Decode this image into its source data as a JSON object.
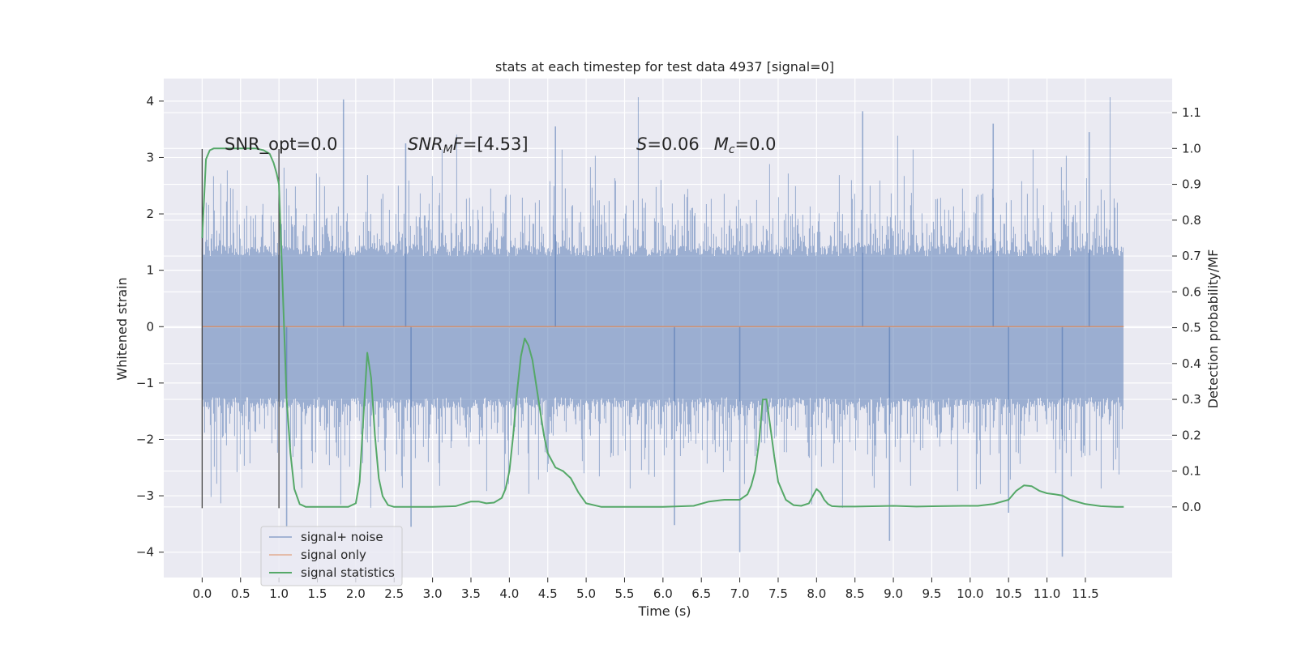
{
  "chart_data": {
    "type": "line",
    "title": "stats at each timestep for test data 4937 [signal=0]",
    "xlabel": "Time (s)",
    "ylabel": "Whitened strain",
    "y2label": "Detection probability/MF",
    "xlim": [
      -0.5,
      12.63
    ],
    "ylim": [
      -4.45,
      4.4
    ],
    "y2lim": [
      -0.197,
      1.195
    ],
    "x_ticks": [
      0.0,
      0.5,
      1.0,
      1.5,
      2.0,
      2.5,
      3.0,
      3.5,
      4.0,
      4.5,
      5.0,
      5.5,
      6.0,
      6.5,
      7.0,
      7.5,
      8.0,
      8.5,
      9.0,
      9.5,
      10.0,
      10.5,
      11.0,
      11.5
    ],
    "x_tick_labels": [
      "0.0",
      "0.5",
      "1.0",
      "1.5",
      "2.0",
      "2.5",
      "3.0",
      "3.5",
      "4.0",
      "4.5",
      "5.0",
      "5.5",
      "6.0",
      "6.5",
      "7.0",
      "7.5",
      "8.0",
      "8.5",
      "9.0",
      "9.5",
      "10.0",
      "10.5",
      "11.0",
      "11.5"
    ],
    "y_ticks": [
      4,
      3,
      2,
      1,
      0,
      -1,
      -2,
      -3,
      -4
    ],
    "y_tick_labels": [
      "4",
      "3",
      "2",
      "1",
      "0",
      "−1",
      "−2",
      "−3",
      "−4"
    ],
    "y2_ticks": [
      1.1,
      1.0,
      0.9,
      0.8,
      0.7,
      0.6,
      0.5,
      0.4,
      0.3,
      0.2,
      0.1,
      0.0
    ],
    "y2_tick_labels": [
      "1.1",
      "1.0",
      "0.9",
      "0.8",
      "0.7",
      "0.6",
      "0.5",
      "0.4",
      "0.3",
      "0.2",
      "0.1",
      "0.0"
    ],
    "grid": true,
    "legend_position": "lower-left",
    "series": [
      {
        "name": "signal+ noise",
        "axis": "left",
        "kind": "noise-band",
        "color": "#4c72b0",
        "t_range": [
          0.0,
          12.0
        ],
        "core_range": [
          -1.25,
          1.25
        ],
        "typical_range": [
          -2.4,
          2.4
        ],
        "notable_peaks": [
          [
            1.84,
            4.03
          ],
          [
            2.65,
            3.25
          ],
          [
            4.6,
            3.55
          ],
          [
            8.6,
            3.82
          ],
          [
            10.3,
            3.6
          ],
          [
            11.55,
            3.45
          ]
        ],
        "notable_troughs": [
          [
            1.1,
            -3.55
          ],
          [
            2.72,
            -3.55
          ],
          [
            6.15,
            -3.52
          ],
          [
            7.0,
            -4.0
          ],
          [
            8.95,
            -3.8
          ],
          [
            10.5,
            -3.3
          ],
          [
            11.2,
            -4.08
          ]
        ]
      },
      {
        "name": "signal only",
        "axis": "left",
        "color": "#dd8452",
        "x": [
          0.0,
          12.0
        ],
        "y": [
          0.0,
          0.0
        ]
      },
      {
        "name": "signal statistics",
        "axis": "right",
        "color": "#55a868",
        "x": [
          0.0,
          0.05,
          0.1,
          0.15,
          0.2,
          0.3,
          0.4,
          0.5,
          0.6,
          0.7,
          0.8,
          0.88,
          0.93,
          0.97,
          1.0,
          1.05,
          1.1,
          1.15,
          1.2,
          1.27,
          1.35,
          1.5,
          1.7,
          1.9,
          2.0,
          2.05,
          2.1,
          2.15,
          2.2,
          2.25,
          2.3,
          2.35,
          2.42,
          2.5,
          2.7,
          3.0,
          3.3,
          3.5,
          3.6,
          3.7,
          3.8,
          3.9,
          3.95,
          4.0,
          4.05,
          4.1,
          4.15,
          4.2,
          4.25,
          4.3,
          4.35,
          4.4,
          4.45,
          4.5,
          4.6,
          4.7,
          4.8,
          4.9,
          5.0,
          5.2,
          5.5,
          6.0,
          6.4,
          6.6,
          6.8,
          7.0,
          7.1,
          7.15,
          7.2,
          7.25,
          7.3,
          7.35,
          7.4,
          7.45,
          7.5,
          7.6,
          7.7,
          7.8,
          7.9,
          8.0,
          8.05,
          8.1,
          8.15,
          8.2,
          8.3,
          8.5,
          8.8,
          9.0,
          9.3,
          9.6,
          9.9,
          10.1,
          10.3,
          10.5,
          10.6,
          10.7,
          10.8,
          10.9,
          11.0,
          11.1,
          11.2,
          11.3,
          11.5,
          11.7,
          11.9,
          12.0
        ],
        "y": [
          0.75,
          0.97,
          0.995,
          1.0,
          1.0,
          1.0,
          1.0,
          1.0,
          1.0,
          1.0,
          0.995,
          0.985,
          0.96,
          0.93,
          0.9,
          0.6,
          0.3,
          0.15,
          0.05,
          0.008,
          0.0,
          0.0,
          0.0,
          0.0,
          0.01,
          0.07,
          0.25,
          0.43,
          0.36,
          0.2,
          0.08,
          0.03,
          0.005,
          0.0,
          0.0,
          0.0,
          0.002,
          0.015,
          0.015,
          0.01,
          0.012,
          0.025,
          0.05,
          0.1,
          0.2,
          0.32,
          0.42,
          0.47,
          0.45,
          0.41,
          0.34,
          0.27,
          0.2,
          0.15,
          0.11,
          0.1,
          0.08,
          0.04,
          0.01,
          0.0,
          0.0,
          0.0,
          0.003,
          0.015,
          0.02,
          0.02,
          0.035,
          0.06,
          0.1,
          0.18,
          0.3,
          0.3,
          0.22,
          0.14,
          0.07,
          0.02,
          0.005,
          0.003,
          0.01,
          0.05,
          0.04,
          0.02,
          0.008,
          0.002,
          0.001,
          0.001,
          0.002,
          0.003,
          0.001,
          0.002,
          0.003,
          0.003,
          0.008,
          0.02,
          0.045,
          0.06,
          0.058,
          0.045,
          0.038,
          0.035,
          0.032,
          0.02,
          0.008,
          0.002,
          0.0,
          0.0
        ]
      }
    ],
    "vlines": [
      {
        "x": 0.0,
        "ymin": -3.22,
        "ymax": 3.15,
        "color": "#444444"
      },
      {
        "x": 1.0,
        "ymin": -3.22,
        "ymax": 3.15,
        "color": "#444444"
      }
    ],
    "annotations": [
      {
        "id": "snr-opt",
        "text": "SNR_opt=0.0"
      },
      {
        "id": "snr-mf",
        "text": "SNR_MF=[4.53]"
      },
      {
        "id": "stat-mc",
        "text": "S=0.06   M_c=0.0"
      }
    ]
  }
}
